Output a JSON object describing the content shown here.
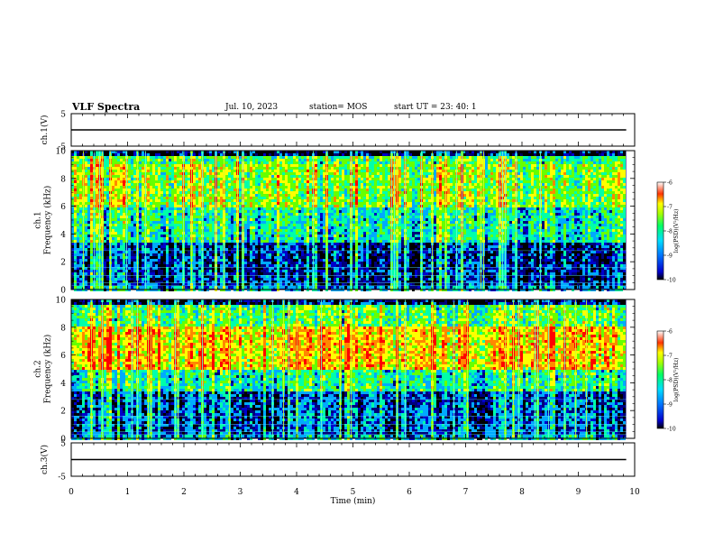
{
  "header": {
    "title": "VLF Spectra",
    "date": "Jul. 10, 2023",
    "station": "station= MOS",
    "start": "start UT = 23: 40: 1"
  },
  "chart_data": [
    {
      "type": "line",
      "panel": "ch1-waveform",
      "ylabel": "ch.1(V)",
      "ylim": [
        -5,
        5
      ],
      "yticks": [
        "5",
        "-5"
      ],
      "series": [
        {
          "values": [
            0,
            0
          ]
        }
      ],
      "x": [
        0,
        9.85
      ],
      "line_color": "#000000"
    },
    {
      "type": "heatmap",
      "panel": "ch1-spectrogram",
      "ylabel": "ch.1\nFrequency (kHz)",
      "ylim": [
        0,
        10
      ],
      "yticks": [
        "0",
        "2",
        "4",
        "6",
        "8",
        "10"
      ],
      "dominant_band_khz": [
        6,
        9
      ],
      "colorbar": {
        "label": "log(PSD)(V²/Hz)",
        "ticks": [
          "-6",
          "-7",
          "-8",
          "-9",
          "-10"
        ],
        "range": [
          -10,
          -6
        ]
      }
    },
    {
      "type": "heatmap",
      "panel": "ch2-spectrogram",
      "ylabel": "ch.2\nFrequency (kHz)",
      "ylim": [
        0,
        10
      ],
      "yticks": [
        "0",
        "2",
        "4",
        "6",
        "8",
        "10"
      ],
      "dominant_band_khz": [
        5,
        8
      ],
      "colorbar": {
        "label": "log(PSD)(V²/Hz)",
        "ticks": [
          "-6",
          "-7",
          "-8",
          "-9",
          "-10"
        ],
        "range": [
          -10,
          -6
        ]
      }
    },
    {
      "type": "line",
      "panel": "ch3-waveform",
      "ylabel": "ch.3(V)",
      "ylim": [
        -5,
        5
      ],
      "yticks": [
        "5",
        "-5"
      ],
      "series": [
        {
          "values": [
            0,
            0
          ]
        }
      ],
      "x": [
        0,
        9.85
      ],
      "line_color": "#000000"
    }
  ],
  "xaxis": {
    "label": "Time (min)",
    "range": [
      0,
      10
    ],
    "ticks": [
      "0",
      "1",
      "2",
      "3",
      "4",
      "5",
      "6",
      "7",
      "8",
      "9",
      "10"
    ],
    "data_end": 9.85
  },
  "colormap": [
    "#000000",
    "#0000cc",
    "#00aaff",
    "#00ffaa",
    "#66ff00",
    "#ffff00",
    "#ff8800",
    "#ff0000",
    "#ffffff"
  ]
}
